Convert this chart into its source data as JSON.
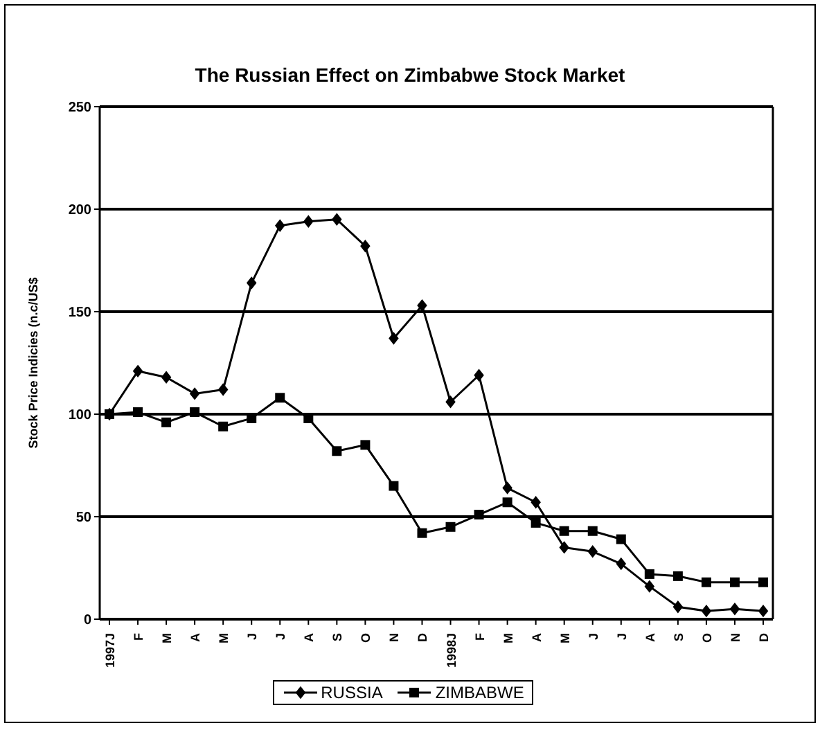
{
  "chart_data": {
    "type": "line",
    "title": "The Russian Effect on Zimbabwe Stock Market",
    "ylabel": "Stock Price Indicies (n.c/US$",
    "categories": [
      "1997J",
      "F",
      "M",
      "A",
      "M",
      "J",
      "J",
      "A",
      "S",
      "O",
      "N",
      "D",
      "1998J",
      "F",
      "M",
      "A",
      "M",
      "J",
      "J",
      "A",
      "S",
      "O",
      "N",
      "D"
    ],
    "series": [
      {
        "name": "RUSSIA",
        "color": "#000000",
        "marker": "diamond",
        "values": [
          100,
          121,
          118,
          110,
          112,
          164,
          192,
          194,
          195,
          182,
          137,
          153,
          106,
          119,
          64,
          57,
          35,
          33,
          27,
          16,
          6,
          4,
          5,
          4
        ]
      },
      {
        "name": "ZIMBABWE",
        "color": "#000000",
        "marker": "square",
        "values": [
          100,
          101,
          96,
          101,
          94,
          98,
          108,
          98,
          82,
          85,
          65,
          42,
          45,
          51,
          57,
          47,
          43,
          43,
          39,
          22,
          21,
          18,
          18,
          18
        ]
      }
    ],
    "ylim": [
      0,
      250
    ],
    "yticks": [
      0,
      50,
      100,
      150,
      200,
      250
    ],
    "grid": "y",
    "legend": "bottom",
    "line_style": "solid"
  }
}
